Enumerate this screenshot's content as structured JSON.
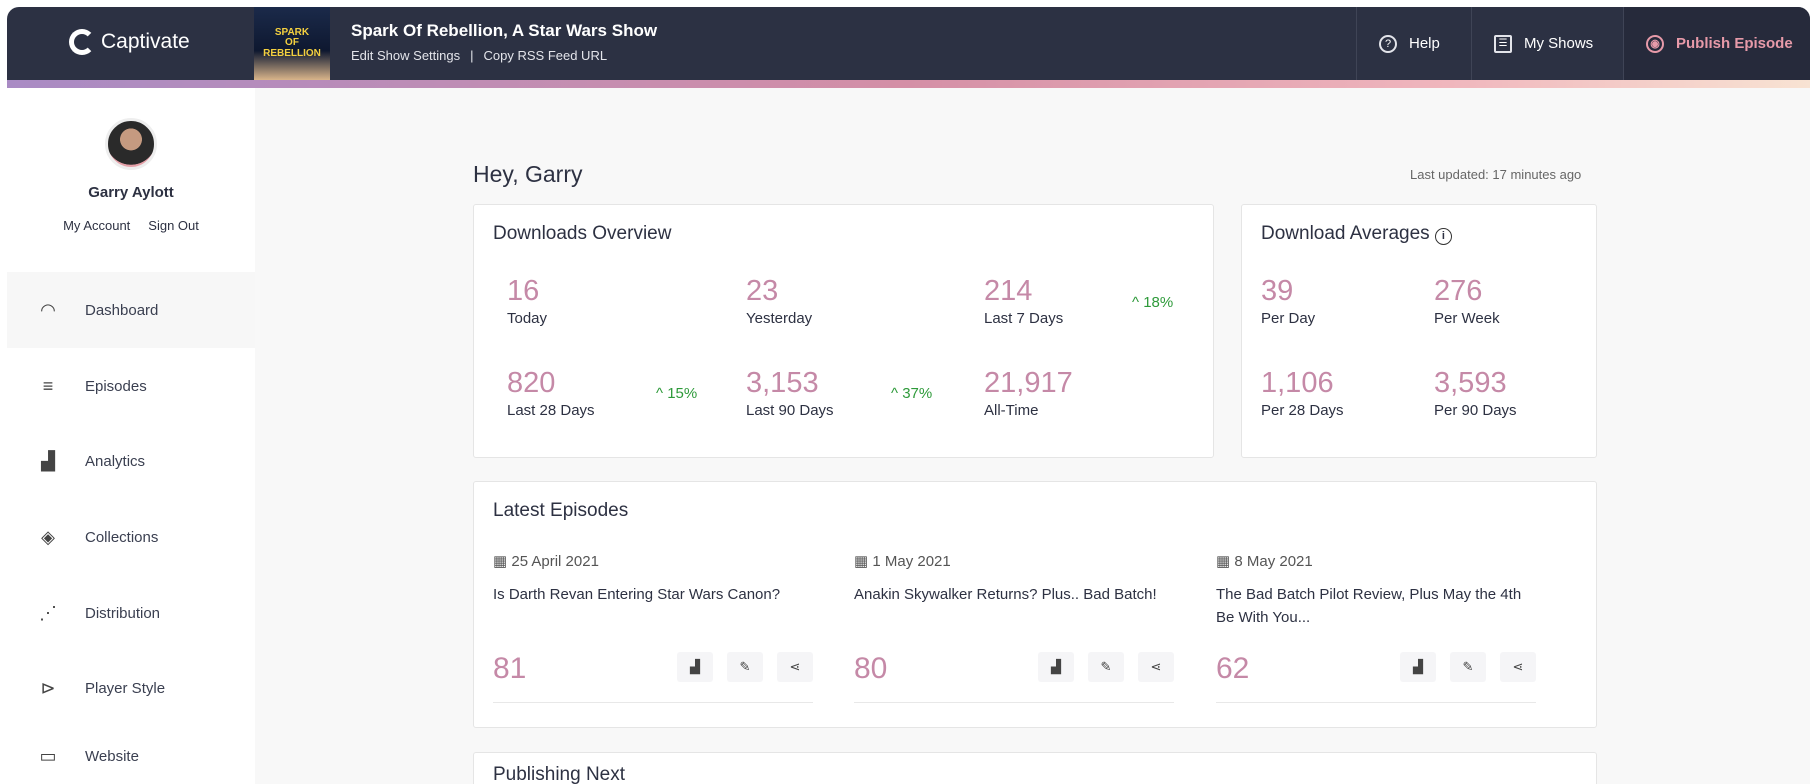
{
  "header": {
    "brand": "Captivate",
    "show_title": "Spark Of Rebellion, A Star Wars Show",
    "cover_text": "SPARK OF REBELLION",
    "edit_settings": "Edit Show Settings",
    "separator": "|",
    "copy_rss": "Copy RSS Feed URL",
    "help": "Help",
    "my_shows": "My Shows",
    "publish": "Publish Episode",
    "publish_color": "#e79aa9"
  },
  "user": {
    "name": "Garry Aylott",
    "my_account": "My Account",
    "sign_out": "Sign Out"
  },
  "sidebar": {
    "items": [
      {
        "label": "Dashboard",
        "icon": "dashboard-gauge-icon",
        "active": true
      },
      {
        "label": "Episodes",
        "icon": "list-lines-icon"
      },
      {
        "label": "Analytics",
        "icon": "analytics-chart-icon"
      },
      {
        "label": "Collections",
        "icon": "layers-icon"
      },
      {
        "label": "Distribution",
        "icon": "network-nodes-icon"
      },
      {
        "label": "Player Style",
        "icon": "play-circle-icon"
      },
      {
        "label": "Website",
        "icon": "browser-window-icon"
      }
    ]
  },
  "main": {
    "greeting": "Hey, Garry",
    "last_updated": "Last updated: 17 minutes ago",
    "overview": {
      "title": "Downloads Overview",
      "stats": [
        {
          "value": "16",
          "label": "Today"
        },
        {
          "value": "23",
          "label": "Yesterday"
        },
        {
          "value": "214",
          "label": "Last 7 Days",
          "change": "^ 18%"
        },
        {
          "value": "820",
          "label": "Last 28 Days",
          "change": "^ 15%"
        },
        {
          "value": "3,153",
          "label": "Last 90 Days",
          "change": "^ 37%"
        },
        {
          "value": "21,917",
          "label": "All-Time"
        }
      ]
    },
    "averages": {
      "title": "Download Averages",
      "info_icon": "info-icon",
      "stats": [
        {
          "value": "39",
          "label": "Per Day"
        },
        {
          "value": "276",
          "label": "Per Week"
        },
        {
          "value": "1,106",
          "label": "Per 28 Days"
        },
        {
          "value": "3,593",
          "label": "Per 90 Days"
        }
      ]
    },
    "latest": {
      "title": "Latest Episodes",
      "episodes": [
        {
          "date": "25 April 2021",
          "title": "Is Darth Revan Entering Star Wars Canon?",
          "downloads": "81"
        },
        {
          "date": "1 May 2021",
          "title": "Anakin Skywalker Returns? Plus.. Bad Batch!",
          "downloads": "80"
        },
        {
          "date": "8 May 2021",
          "title": "The Bad Batch Pilot Review, Plus May the 4th Be With You...",
          "downloads": "62"
        }
      ]
    },
    "publishing_next": {
      "title": "Publishing Next"
    }
  },
  "colors": {
    "accent": "#c589a7",
    "positive": "#2e9a3a",
    "header_bg": "#2c3143"
  }
}
